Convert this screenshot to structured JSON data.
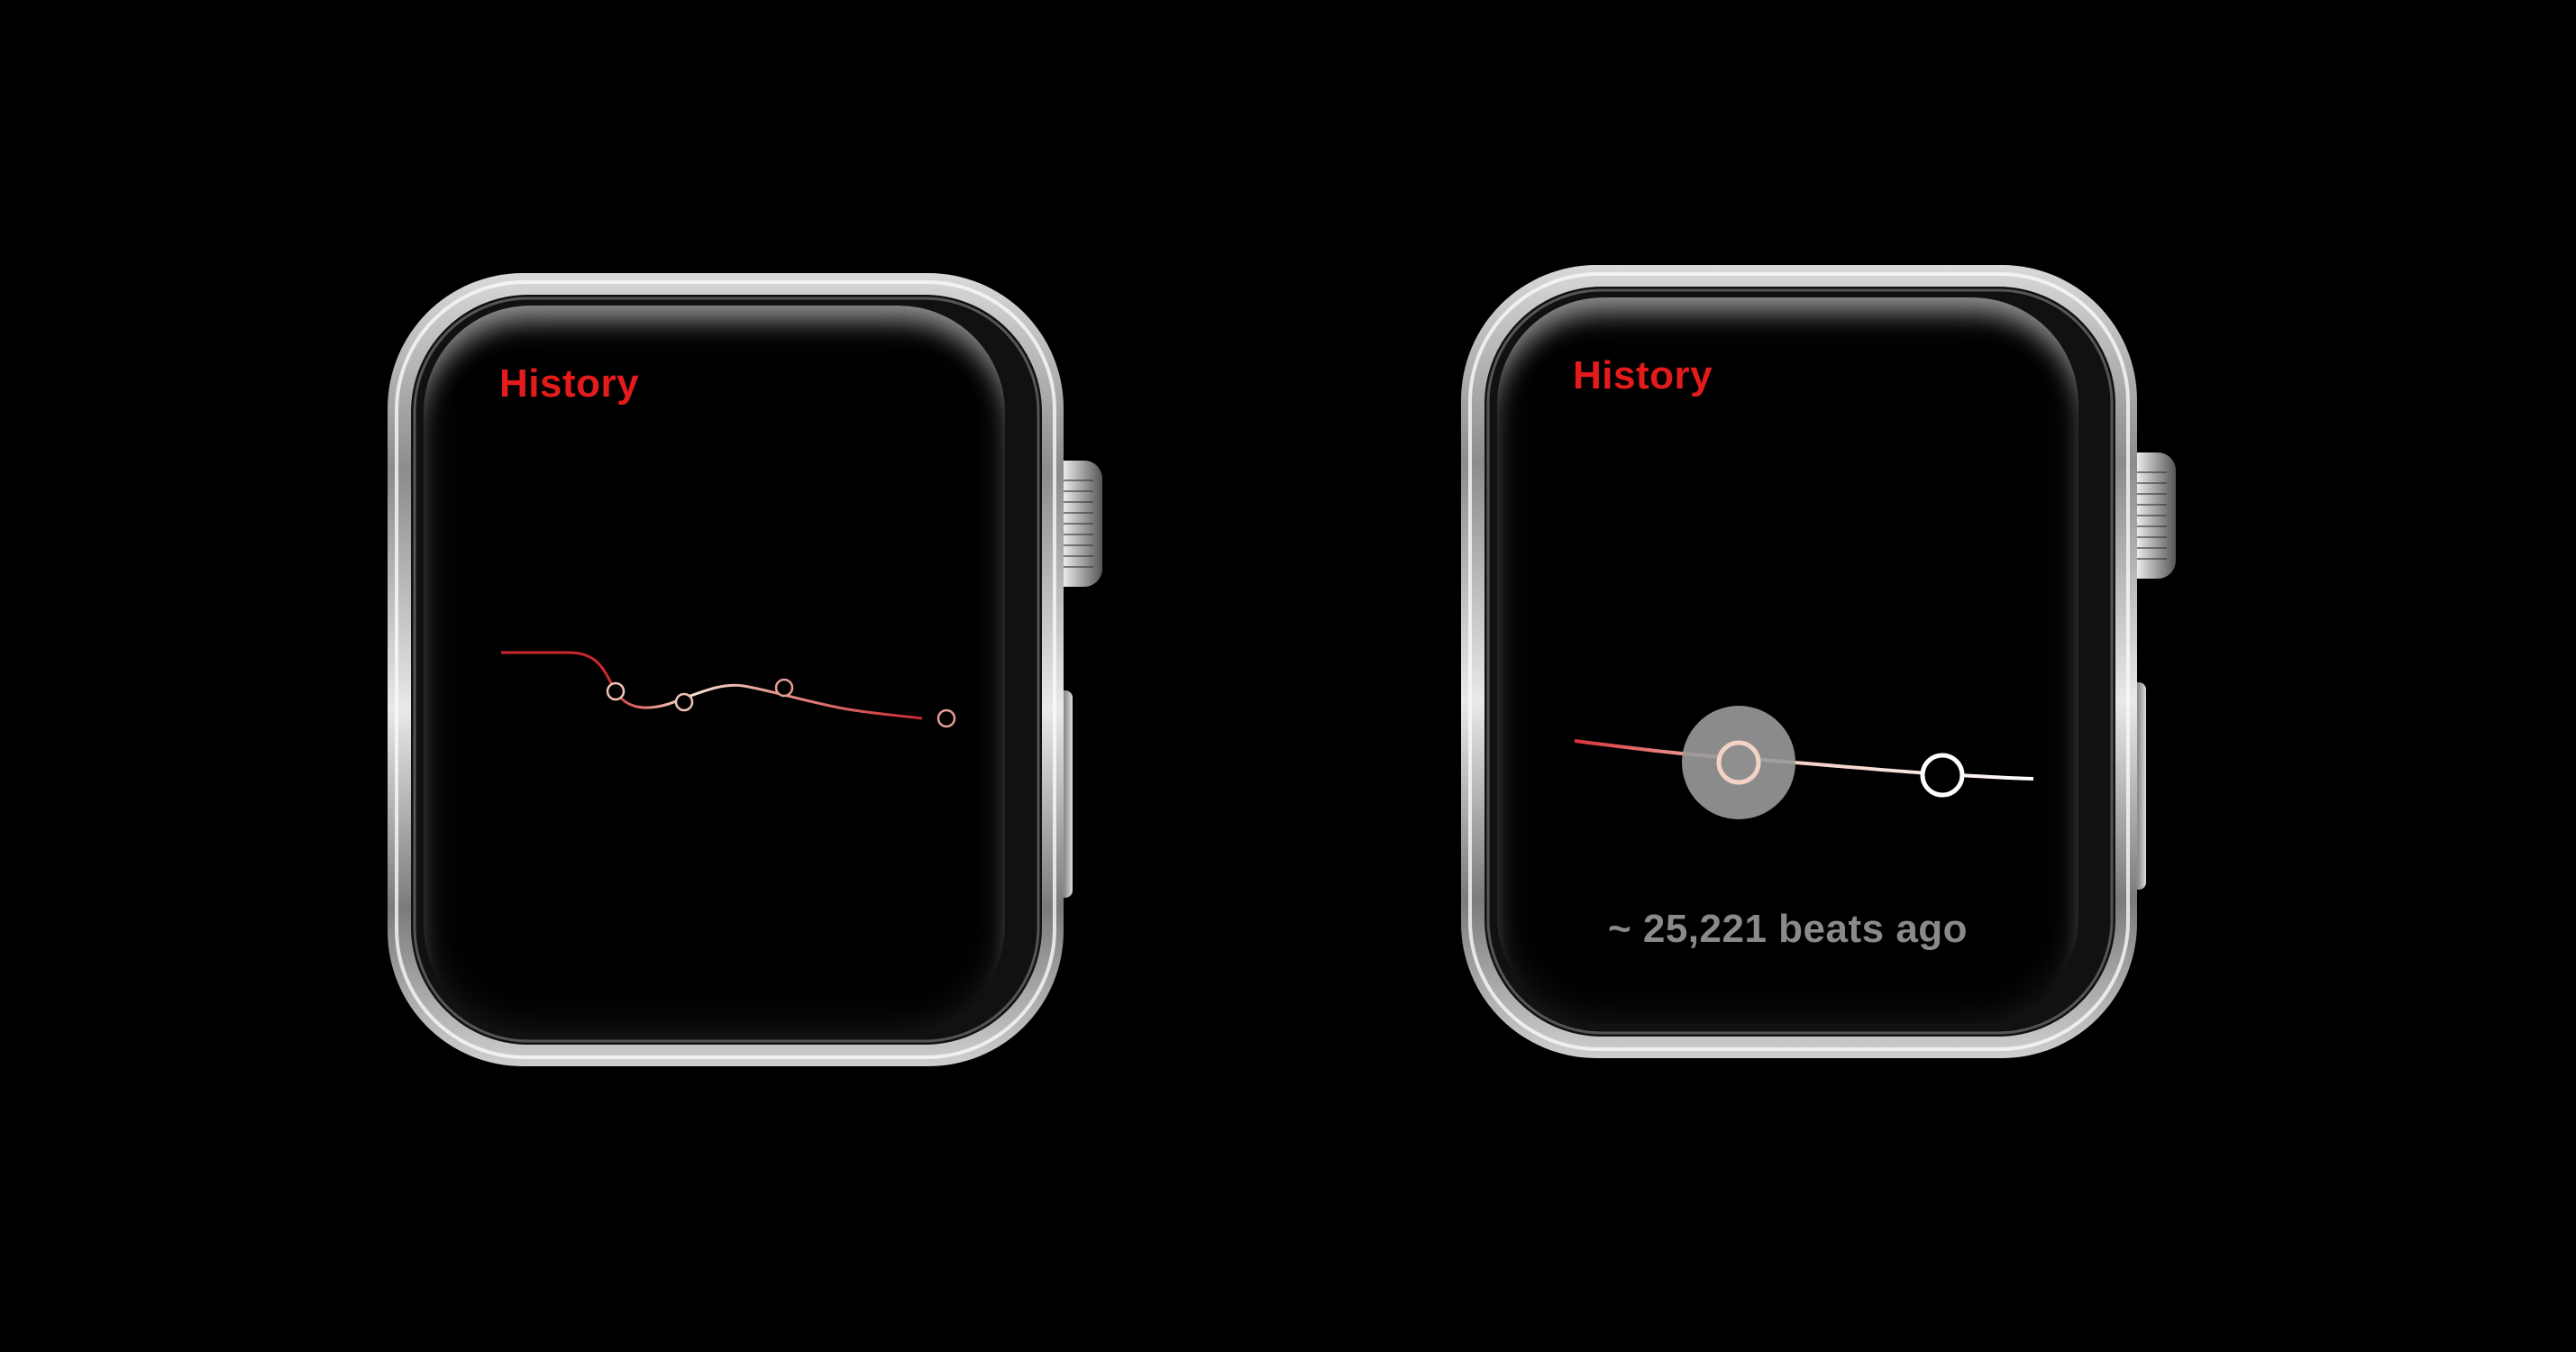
{
  "left_watch": {
    "title": "History"
  },
  "right_watch": {
    "title": "History",
    "status": "~ 25,221 beats ago"
  },
  "colors": {
    "background": "#000000",
    "title": "#e31b1b",
    "status_text": "#8a8a8a",
    "line_red": "#c8282e",
    "line_light": "#f1c8bb",
    "selection_halo": "#9a9a9a"
  },
  "icons": {
    "digital_crown": "digital-crown-icon",
    "side_button": "side-button-icon"
  }
}
